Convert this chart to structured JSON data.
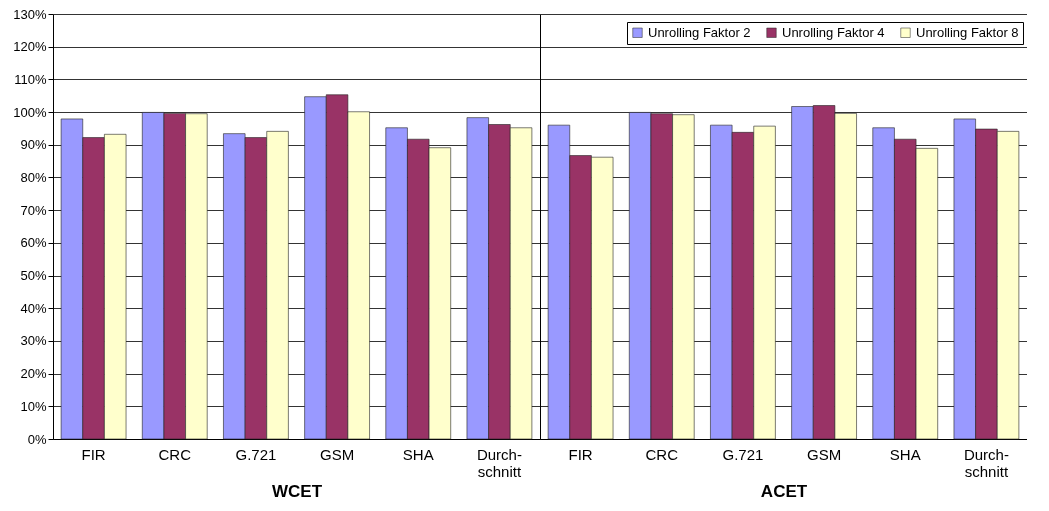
{
  "chart_data": [
    {
      "type": "bar",
      "xlabel": "WCET",
      "categories": [
        "FIR",
        "CRC",
        "G.721",
        "GSM",
        "SHA",
        "Durch- schnitt"
      ],
      "legend": "top right",
      "series": [
        {
          "name": "Unrolling Faktor 2",
          "color": "#9999ff",
          "values": [
            97.9,
            99.9,
            93.4,
            104.7,
            95.2,
            98.3
          ]
        },
        {
          "name": "Unrolling Faktor 4",
          "color": "#993366",
          "values": [
            92.2,
            99.6,
            92.2,
            105.3,
            91.7,
            96.2
          ]
        },
        {
          "name": "Unrolling Faktor 8",
          "color": "#ffffcc",
          "values": [
            93.2,
            99.5,
            94.1,
            100.1,
            89.1,
            95.2
          ]
        }
      ],
      "ylim": [
        0,
        130
      ],
      "yticks": [
        {
          "value": 0,
          "label": "0%"
        },
        {
          "value": 10,
          "label": "10%"
        },
        {
          "value": 20,
          "label": "20%"
        },
        {
          "value": 30,
          "label": "30%"
        },
        {
          "value": 40,
          "label": "40%"
        },
        {
          "value": 50,
          "label": "50%"
        },
        {
          "value": 60,
          "label": "60%"
        },
        {
          "value": 70,
          "label": "70%"
        },
        {
          "value": 80,
          "label": "80%"
        },
        {
          "value": 90,
          "label": "90%"
        },
        {
          "value": 100,
          "label": "100%"
        },
        {
          "value": 110,
          "label": "110%"
        },
        {
          "value": 120,
          "label": "120%"
        },
        {
          "value": 130,
          "label": "130%"
        }
      ],
      "grid": "y"
    },
    {
      "type": "bar",
      "xlabel": "ACET",
      "categories": [
        "FIR",
        "CRC",
        "G.721",
        "GSM",
        "SHA",
        "Durch- schnitt"
      ],
      "series": [
        {
          "name": "Unrolling Faktor 2",
          "color": "#9999ff",
          "values": [
            96.0,
            99.9,
            96.0,
            101.7,
            95.2,
            97.9
          ]
        },
        {
          "name": "Unrolling Faktor 4",
          "color": "#993366",
          "values": [
            86.7,
            99.5,
            93.8,
            102.0,
            91.7,
            94.8
          ]
        },
        {
          "name": "Unrolling Faktor 8",
          "color": "#ffffcc",
          "values": [
            86.2,
            99.2,
            95.7,
            99.6,
            88.9,
            94.1
          ]
        }
      ],
      "ylim": [
        0,
        130
      ],
      "yticks": [
        0,
        10,
        20,
        30,
        40,
        50,
        60,
        70,
        80,
        90,
        100,
        110,
        120,
        130
      ],
      "grid": "y",
      "tick_labels": "x"
    }
  ]
}
